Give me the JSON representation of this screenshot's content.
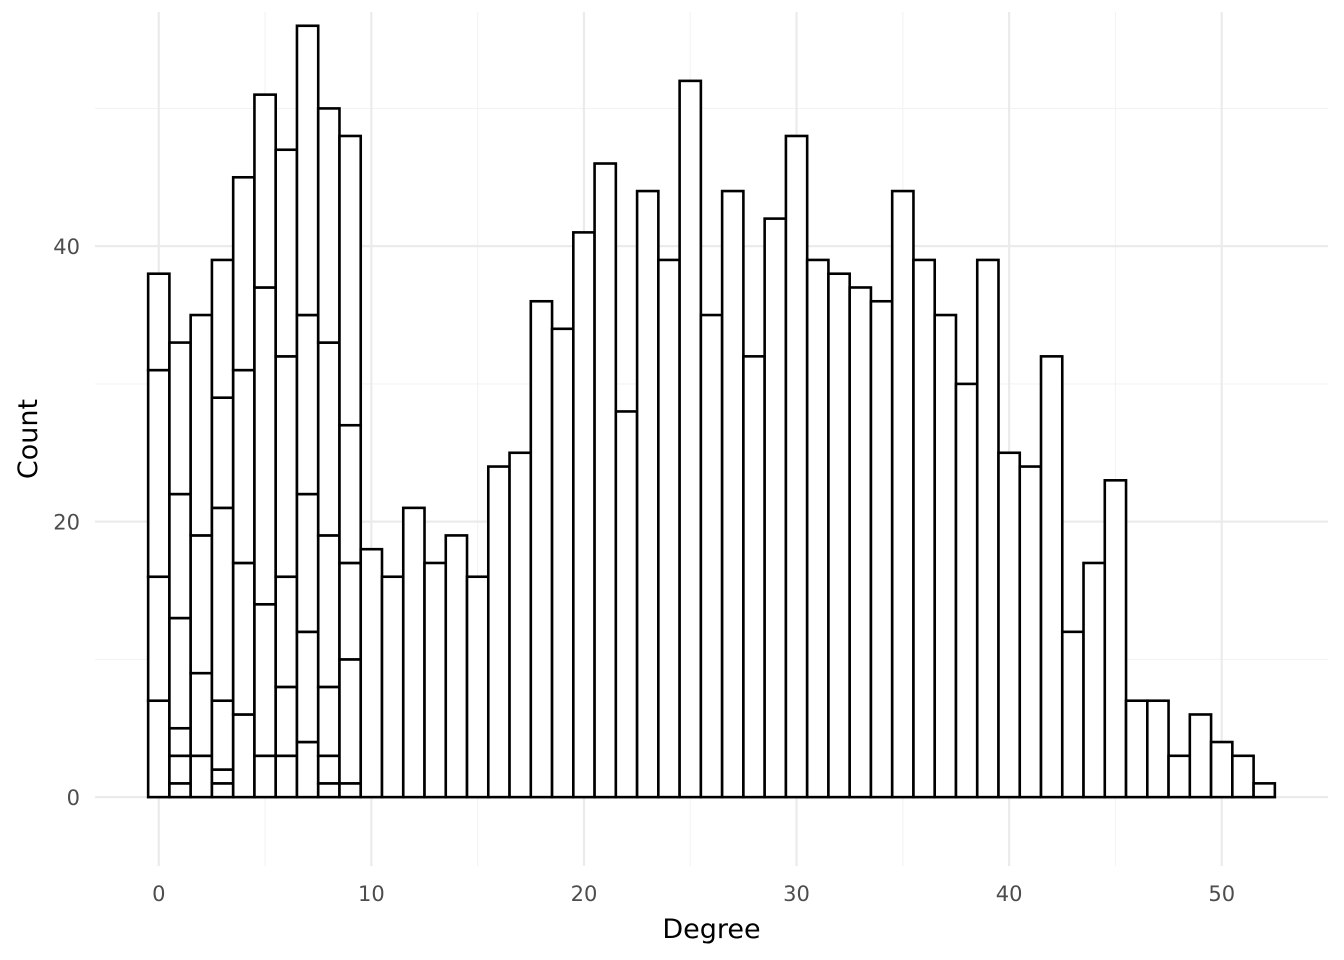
{
  "chart_data": {
    "type": "bar",
    "subtype": "stacked-histogram",
    "title": "",
    "xlabel": "Degree",
    "ylabel": "Count",
    "xlim": [
      -3,
      55
    ],
    "ylim": [
      -5,
      57
    ],
    "x_ticks": [
      0,
      10,
      20,
      30,
      40,
      50
    ],
    "y_ticks": [
      0,
      20,
      40
    ],
    "grid": true,
    "legend": "none",
    "bar_fill": "#ffffff",
    "bar_outline": "#000000",
    "bin_width": 1,
    "x": [
      0,
      1,
      2,
      3,
      4,
      5,
      6,
      7,
      8,
      9,
      10,
      11,
      12,
      13,
      14,
      15,
      16,
      17,
      18,
      19,
      20,
      21,
      22,
      23,
      24,
      25,
      26,
      27,
      28,
      29,
      30,
      31,
      32,
      33,
      34,
      35,
      36,
      37,
      38,
      39,
      40,
      41,
      42,
      43,
      44,
      45,
      46,
      47,
      48,
      49,
      50,
      51,
      52
    ],
    "values": [
      38,
      33,
      35,
      39,
      45,
      51,
      47,
      56,
      50,
      48,
      18,
      16,
      21,
      17,
      19,
      16,
      24,
      25,
      36,
      34,
      41,
      46,
      28,
      44,
      39,
      52,
      35,
      44,
      32,
      42,
      48,
      39,
      38,
      37,
      36,
      44,
      39,
      35,
      30,
      39,
      25,
      24,
      32,
      12,
      17,
      23,
      7,
      7,
      3,
      6,
      4,
      3,
      1
    ],
    "stack_segment_boundaries": [
      {
        "x": 0,
        "boundaries": [
          7,
          16,
          31
        ]
      },
      {
        "x": 1,
        "boundaries": [
          1,
          3,
          5,
          13,
          22
        ]
      },
      {
        "x": 2,
        "boundaries": [
          3,
          9,
          19
        ]
      },
      {
        "x": 3,
        "boundaries": [
          1,
          2,
          7,
          21,
          29
        ]
      },
      {
        "x": 4,
        "boundaries": [
          6,
          17,
          31
        ]
      },
      {
        "x": 5,
        "boundaries": [
          3,
          14,
          37
        ]
      },
      {
        "x": 6,
        "boundaries": [
          3,
          8,
          16,
          32
        ]
      },
      {
        "x": 7,
        "boundaries": [
          4,
          12,
          22,
          35
        ]
      },
      {
        "x": 8,
        "boundaries": [
          1,
          3,
          8,
          19,
          33
        ]
      },
      {
        "x": 9,
        "boundaries": [
          1,
          10,
          17,
          27
        ]
      }
    ]
  }
}
